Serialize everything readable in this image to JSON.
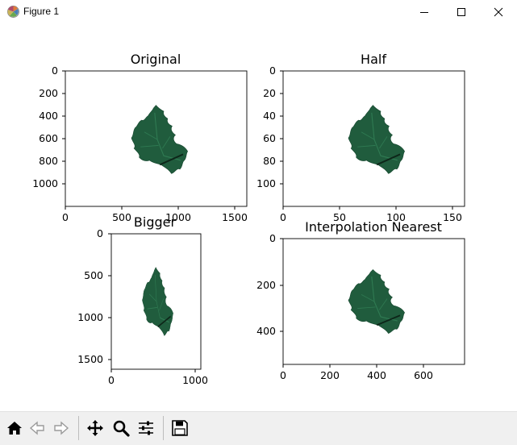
{
  "window": {
    "title": "Figure 1"
  },
  "colors": {
    "leaf_dark": "#1f5a3c",
    "leaf_mid": "#2d6e4d",
    "leaf_vein": "#0f2e1f",
    "axis": "#000000"
  },
  "subplots": [
    {
      "title": "Original",
      "xticks": [
        "0",
        "500",
        "1000",
        "1500"
      ],
      "yticks": [
        "0",
        "200",
        "400",
        "600",
        "800",
        "1000"
      ]
    },
    {
      "title": "Half",
      "xticks": [
        "0",
        "50",
        "100",
        "150"
      ],
      "yticks": [
        "0",
        "20",
        "40",
        "60",
        "80",
        "100"
      ]
    },
    {
      "title": "Bigger",
      "xticks": [
        "0",
        "1000"
      ],
      "yticks": [
        "0",
        "500",
        "1000",
        "1500"
      ]
    },
    {
      "title": "Interpolation Nearest",
      "xticks": [
        "0",
        "200",
        "400",
        "600"
      ],
      "yticks": [
        "0",
        "200",
        "400"
      ]
    }
  ],
  "toolbar": {
    "buttons": [
      "home-icon",
      "back-icon",
      "forward-icon",
      "pan-icon",
      "zoom-icon",
      "configure-subplots-icon",
      "save-icon"
    ]
  }
}
